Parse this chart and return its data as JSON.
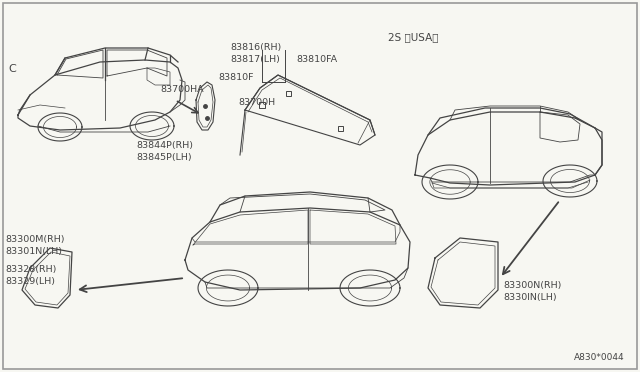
{
  "bg_color": "#f7f7f2",
  "border_color": "#999999",
  "line_color": "#444444",
  "text_color": "#444444",
  "title_bottom": "A830*0044",
  "label_C": "C",
  "label_2S": "2S 〈USA〉"
}
